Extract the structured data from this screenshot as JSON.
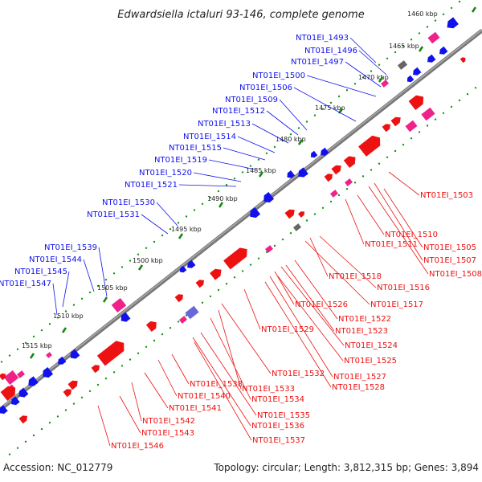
{
  "title": "Edwardsiella ictaluri 93-146, complete genome",
  "footer": {
    "accession": "Accession: NC_012779",
    "topology": "Topology: circular; Length: 3,812,315 bp; Genes: 3,894"
  },
  "colors": {
    "forward": "#ee1111",
    "reverse": "#1111ee",
    "rna": "#ee2288",
    "other": "#666666",
    "dots": "#119911",
    "backbone": "#777777"
  },
  "kbp_labels": [
    "1460 kbp",
    "1465 kbp",
    "1470 kbp",
    "1475 kbp",
    "1480 kbp",
    "1485 kbp",
    "1490 kbp",
    "1495 kbp",
    "1500 kbp",
    "1505 kbp",
    "1510 kbp",
    "1515 kbp"
  ],
  "top_labels": [
    "NT01EI_1493",
    "NT01EI_1496",
    "NT01EI_1497",
    "NT01EI_1500",
    "NT01EI_1506",
    "NT01EI_1509",
    "NT01EI_1512",
    "NT01EI_1513",
    "NT01EI_1514",
    "NT01EI_1515",
    "NT01EI_1519",
    "NT01EI_1520",
    "NT01EI_1521",
    "NT01EI_1530",
    "NT01EI_1531",
    "NT01EI_1539",
    "NT01EI_1544",
    "NT01EI_1545",
    "NT01EI_1547"
  ],
  "bottom_labels": [
    "NT01EI_1503",
    "NT01EI_1510",
    "NT01EI_1511",
    "NT01EI_1505",
    "NT01EI_1507",
    "NT01EI_1508",
    "NT01EI_1518",
    "NT01EI_1516",
    "NT01EI_1517",
    "NT01EI_1526",
    "NT01EI_1522",
    "NT01EI_1523",
    "NT01EI_1529",
    "NT01EI_1524",
    "NT01EI_1525",
    "NT01EI_1532",
    "NT01EI_1527",
    "NT01EI_1528",
    "NT01EI_1538",
    "NT01EI_1533",
    "NT01EI_1534",
    "NT01EI_1540",
    "NT01EI_1541",
    "NT01EI_1535",
    "NT01EI_1536",
    "NT01EI_1542",
    "NT01EI_1543",
    "NT01EI_1537",
    "NT01EI_1546"
  ]
}
